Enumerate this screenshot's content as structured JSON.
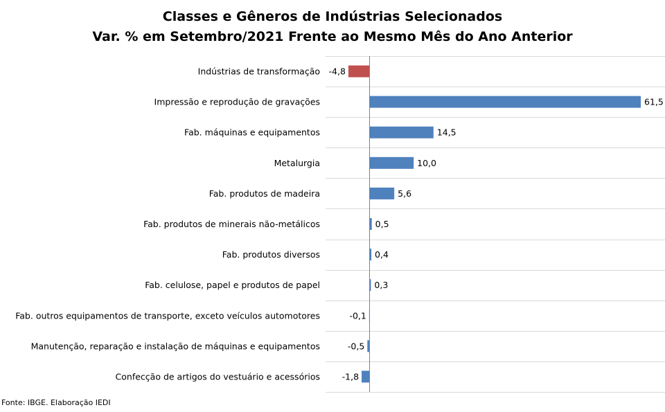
{
  "chart_data": {
    "type": "bar",
    "orientation": "horizontal",
    "title": "Classes e Gêneros de Indústrias Selecionados",
    "subtitle": "Var. % em Setembro/2021 Frente ao Mesmo Mês do Ano Anterior",
    "categories": [
      "Indústrias de transformação",
      "Impressão e reprodução de gravações",
      "Fab. máquinas e equipamentos",
      "Metalurgia",
      "Fab. produtos de madeira",
      "Fab. produtos de minerais não-metálicos",
      "Fab. produtos diversos",
      "Fab. celulose, papel e produtos de papel",
      "Fab. outros equipamentos de transporte, exceto veículos automotores",
      "Manutenção, reparação e instalação de máquinas e equipamentos",
      "Confecção de artigos do vestuário e acessórios"
    ],
    "values": [
      -4.8,
      61.5,
      14.5,
      10.0,
      5.6,
      0.5,
      0.4,
      0.3,
      -0.1,
      -0.5,
      -1.8
    ],
    "value_labels": [
      "-4,8",
      "61,5",
      "14,5",
      "10,0",
      "5,6",
      "0,5",
      "0,4",
      "0,3",
      "-0,1",
      "-0,5",
      "-1,8"
    ],
    "bar_colors": [
      "#c0504d",
      "#4f81bd",
      "#4f81bd",
      "#4f81bd",
      "#4f81bd",
      "#4f81bd",
      "#4f81bd",
      "#4f81bd",
      "#4f81bd",
      "#4f81bd",
      "#4f81bd"
    ],
    "gridlines": "horizontal separators",
    "gridline_color": "#d9d9d9",
    "xlim": [
      -4.8,
      61.5
    ]
  },
  "source": "Fonte: IBGE. Elaboração IEDI"
}
